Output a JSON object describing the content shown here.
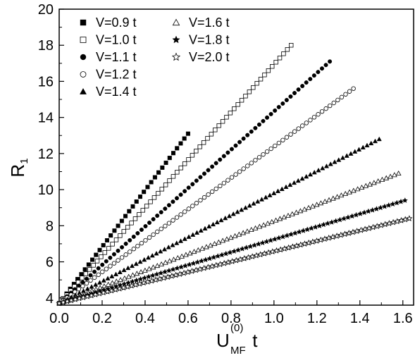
{
  "chart_data": {
    "type": "scatter",
    "xlabel": {
      "main": "U",
      "sub": "MF",
      "sup": "(0)",
      "suffix": " t"
    },
    "ylabel": {
      "main": "R",
      "sub": "1"
    },
    "xlim": [
      0,
      1.65
    ],
    "ylim": [
      3.6,
      20
    ],
    "xticks": [
      0.0,
      0.2,
      0.4,
      0.6,
      0.8,
      1.0,
      1.2,
      1.4,
      1.6
    ],
    "xtick_labels": [
      "0.0",
      "0.2",
      "0.4",
      "0.6",
      "0.8",
      "1.0",
      "1.2",
      "1.4",
      "1.6"
    ],
    "yticks": [
      4,
      6,
      8,
      10,
      12,
      14,
      16,
      18,
      20
    ],
    "ytick_labels": [
      "4",
      "6",
      "8",
      "10",
      "12",
      "14",
      "16",
      "18",
      "20"
    ],
    "grid": false,
    "legend_position": "top-left",
    "series": [
      {
        "name": "V=0.9 t",
        "marker": "square-filled",
        "x0": 0.0,
        "x1": 0.6,
        "y0": 3.7,
        "y1": 13.1,
        "n": 36
      },
      {
        "name": "V=1.0 t",
        "marker": "square-open",
        "x0": 0.0,
        "x1": 1.08,
        "y0": 3.7,
        "y1": 18.0,
        "n": 62
      },
      {
        "name": "V=1.1 t",
        "marker": "circle-filled",
        "x0": 0.0,
        "x1": 1.26,
        "y0": 3.7,
        "y1": 17.1,
        "n": 70
      },
      {
        "name": "V=1.2 t",
        "marker": "circle-open",
        "x0": 0.0,
        "x1": 1.37,
        "y0": 3.7,
        "y1": 15.6,
        "n": 76
      },
      {
        "name": "V=1.4 t",
        "marker": "triangle-filled",
        "x0": 0.0,
        "x1": 1.49,
        "y0": 3.7,
        "y1": 12.8,
        "n": 80
      },
      {
        "name": "V=1.6 t",
        "marker": "triangle-open",
        "x0": 0.0,
        "x1": 1.58,
        "y0": 3.7,
        "y1": 10.9,
        "n": 84
      },
      {
        "name": "V=1.8 t",
        "marker": "star-filled",
        "x0": 0.0,
        "x1": 1.61,
        "y0": 3.7,
        "y1": 9.4,
        "n": 86
      },
      {
        "name": "V=2.0 t",
        "marker": "star-open",
        "x0": 0.0,
        "x1": 1.63,
        "y0": 3.7,
        "y1": 8.4,
        "n": 88
      }
    ]
  }
}
